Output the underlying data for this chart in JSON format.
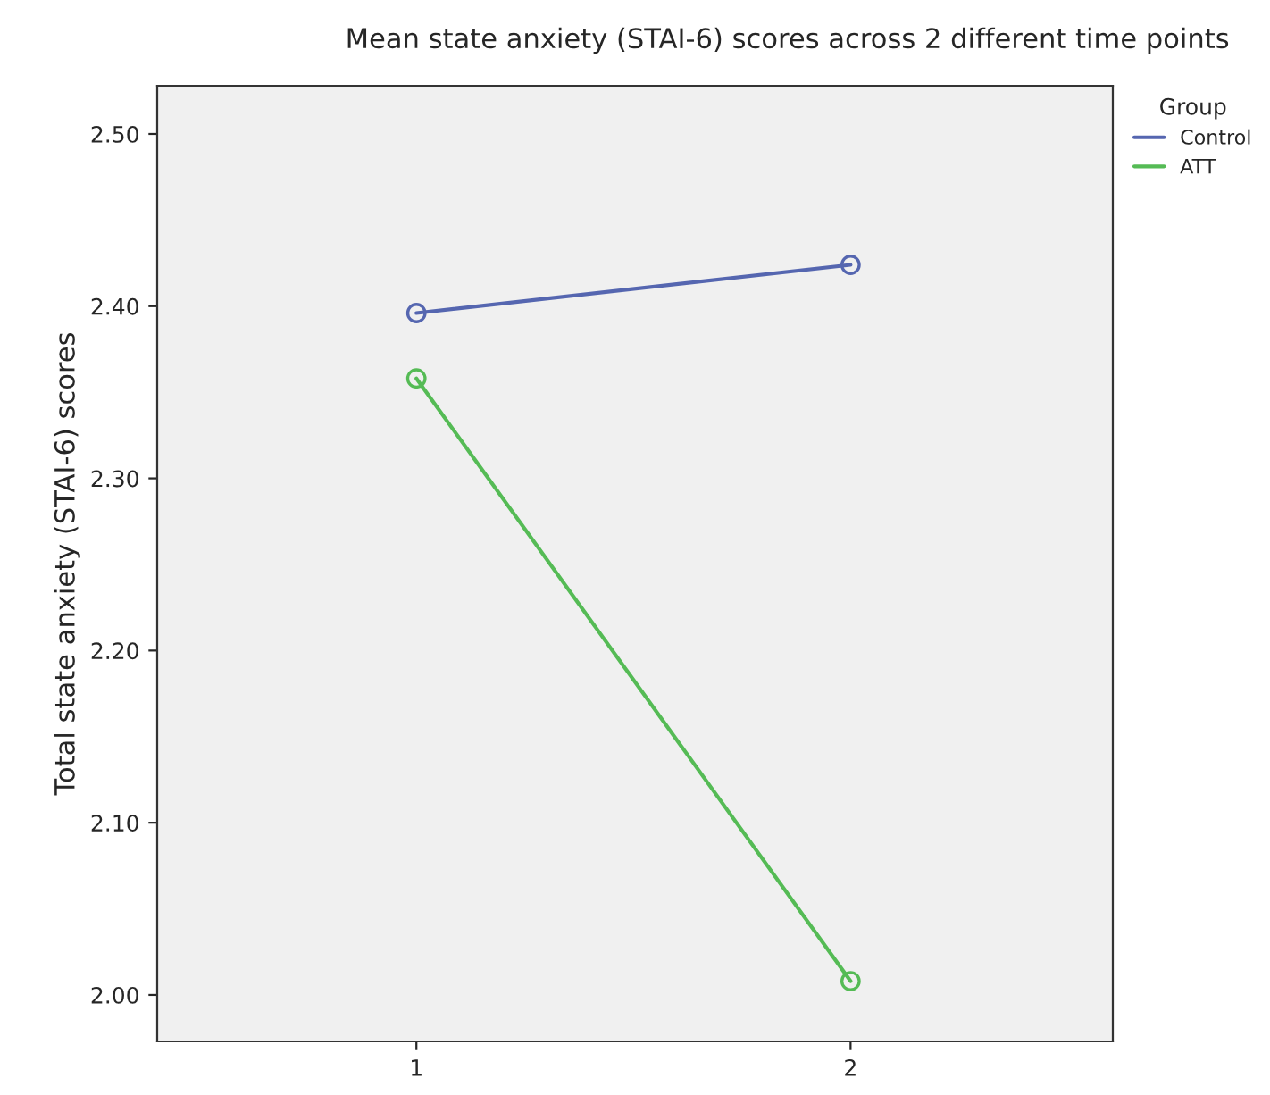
{
  "chart_data": {
    "type": "line",
    "title": "Mean state anxiety (STAI-6) scores across 2 different time points",
    "ylabel": "Total state anxiety (STAI-6) scores",
    "legend_title": "Group",
    "categories": [
      "1",
      "2"
    ],
    "series": [
      {
        "name": "Control",
        "color": "#5566b0",
        "values": [
          2.396,
          2.424
        ]
      },
      {
        "name": "ATT",
        "color": "#55bb55",
        "values": [
          2.358,
          2.008
        ]
      }
    ],
    "ylim": [
      1.973,
      2.528
    ],
    "yticks": [
      {
        "value": 2.0,
        "label": "2.00"
      },
      {
        "value": 2.1,
        "label": "2.10"
      },
      {
        "value": 2.2,
        "label": "2.20"
      },
      {
        "value": 2.3,
        "label": "2.30"
      },
      {
        "value": 2.4,
        "label": "2.40"
      },
      {
        "value": 2.5,
        "label": "2.50"
      }
    ],
    "marker": "circle",
    "line_style": "solid",
    "grid": false,
    "legend": "top right"
  }
}
